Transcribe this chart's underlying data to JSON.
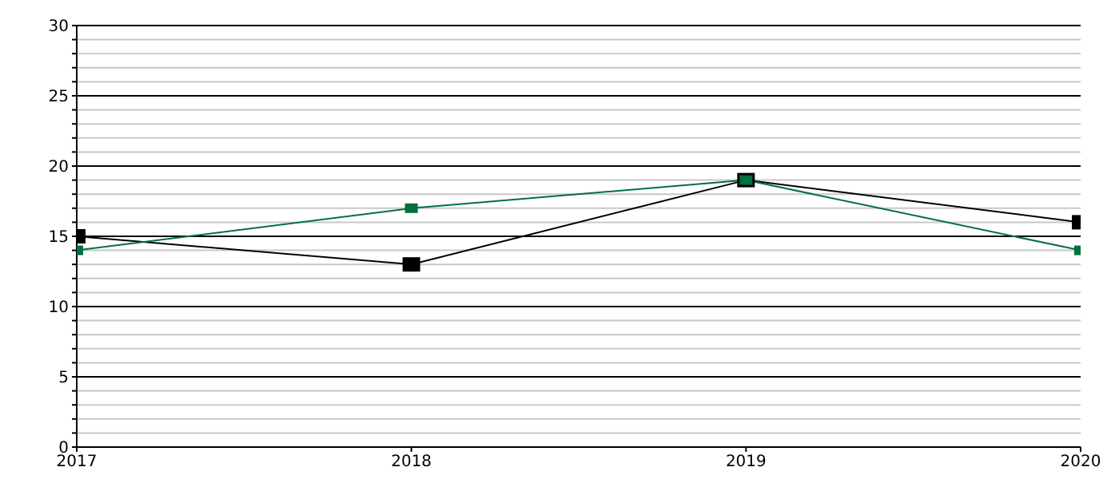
{
  "chart_data": {
    "type": "line",
    "x": [
      2017,
      2018,
      2019,
      2020
    ],
    "xlim": [
      2017,
      2020
    ],
    "xticks": [
      2017,
      2018,
      2019,
      2020
    ],
    "ylim": [
      0,
      30
    ],
    "yticks": [
      0,
      {
        "value": 1,
        "label": null
      },
      {
        "value": 2,
        "label": null
      },
      {
        "value": 3,
        "label": null
      },
      {
        "value": 4,
        "label": null
      },
      5,
      {
        "value": 6,
        "label": null
      },
      {
        "value": 7,
        "label": null
      },
      {
        "value": 8,
        "label": null
      },
      {
        "value": 9,
        "label": null
      },
      10,
      {
        "value": 11,
        "label": null
      },
      {
        "value": 12,
        "label": null
      },
      {
        "value": 13,
        "label": null
      },
      {
        "value": 14,
        "label": null
      },
      15,
      {
        "value": 16,
        "label": null
      },
      {
        "value": 17,
        "label": null
      },
      {
        "value": 18,
        "label": null
      },
      {
        "value": 19,
        "label": null
      },
      20,
      {
        "value": 21,
        "label": null
      },
      {
        "value": 22,
        "label": null
      },
      {
        "value": 23,
        "label": null
      },
      {
        "value": 24,
        "label": null
      },
      25,
      {
        "value": 26,
        "label": null
      },
      {
        "value": 27,
        "label": null
      },
      {
        "value": 28,
        "label": null
      },
      {
        "value": 29,
        "label": null
      },
      30
    ],
    "grid": "y",
    "marker": "square",
    "line_style": "solid",
    "series": [
      {
        "color": "#000000",
        "values": [
          15,
          13,
          19,
          16
        ]
      },
      {
        "color": "#00703c",
        "values": [
          14,
          17,
          19,
          14
        ]
      }
    ]
  }
}
